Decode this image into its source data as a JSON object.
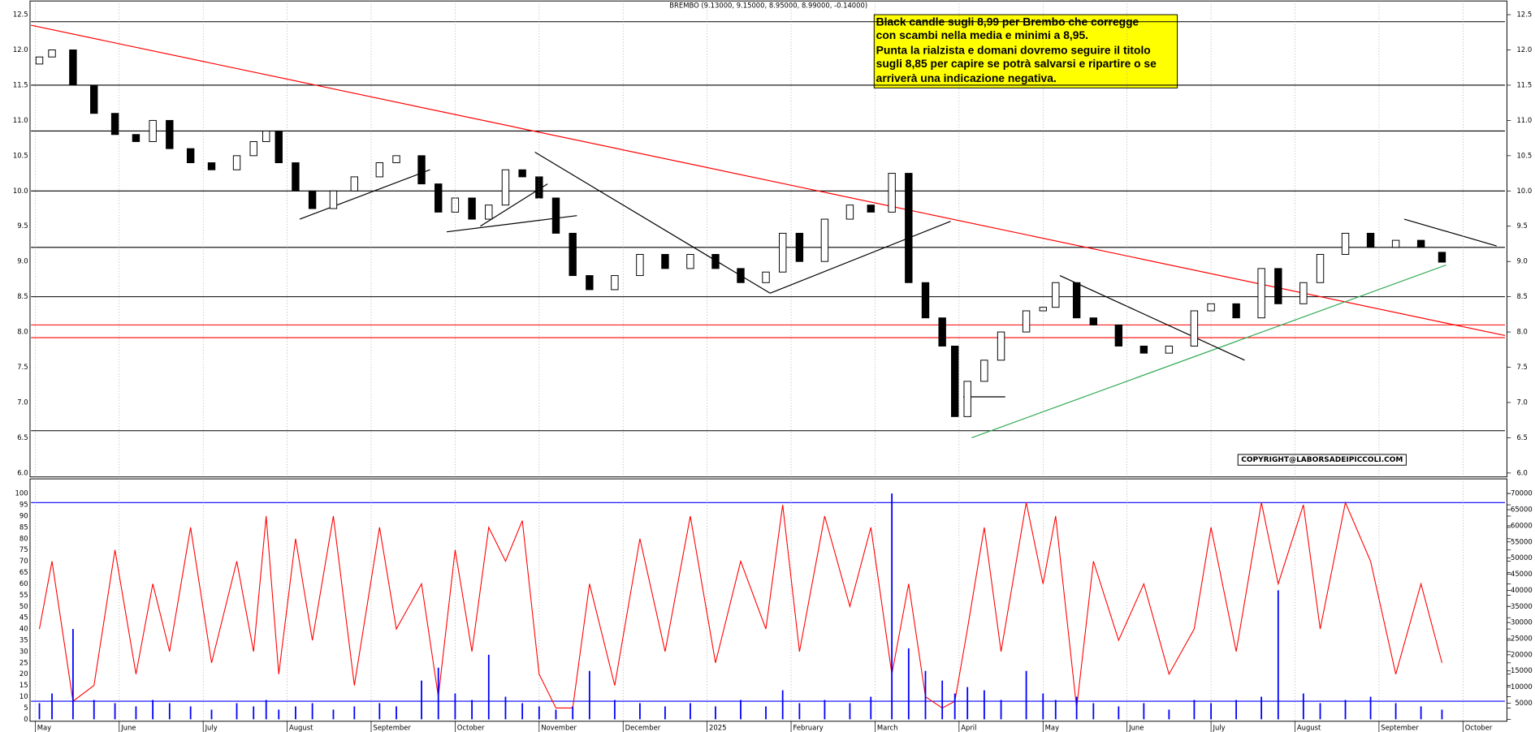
{
  "header": "BREMBO (9.13000, 9.15000, 8.95000, 8.99000, -0.14000)",
  "comment": [
    "Black candle sugli 8,99 per Brembo che corregge",
    "con scambi nella media e minimi a 8,95.",
    "Punta la rialzista e domani dovremo seguire il titolo",
    "sugli 8,85 per capire se potrà salvarsi e ripartire o se",
    "arriverà una indicazione negativa."
  ],
  "copyright": "COPYRIGHT@LABORSADEIPICCOLI.COM",
  "chart_data": [
    {
      "type": "candlestick",
      "x": [
        0.05,
        0.2,
        0.45,
        0.7,
        0.95,
        1.2,
        1.4,
        1.6,
        1.85,
        2.1,
        2.4,
        2.6,
        2.75,
        2.9,
        3.1,
        3.3,
        3.55,
        3.8,
        4.1,
        4.3,
        4.6,
        4.8,
        5.0,
        5.2,
        5.4,
        5.6,
        5.8,
        6.0,
        6.2,
        6.4,
        6.6,
        6.9,
        7.2,
        7.5,
        7.8,
        8.1,
        8.4,
        8.7,
        8.9,
        9.1,
        9.4,
        9.7,
        9.95,
        10.2,
        10.4,
        10.6,
        10.8,
        10.95,
        11.1,
        11.3,
        11.5,
        11.8,
        12.0,
        12.15,
        12.4,
        12.6,
        12.9,
        13.2,
        13.5,
        13.8,
        14.0,
        14.3,
        14.6,
        14.8,
        15.1,
        15.3,
        15.6,
        15.9,
        16.2,
        16.5,
        16.75
      ],
      "open": [
        11.8,
        11.9,
        12.0,
        11.5,
        11.1,
        10.8,
        10.7,
        11.0,
        10.6,
        10.4,
        10.3,
        10.5,
        10.7,
        10.85,
        10.4,
        10.0,
        9.75,
        10.0,
        10.2,
        10.4,
        10.5,
        10.1,
        9.7,
        9.9,
        9.6,
        9.8,
        10.3,
        10.2,
        9.9,
        9.4,
        8.8,
        8.6,
        8.8,
        9.1,
        8.9,
        9.1,
        8.9,
        8.7,
        8.85,
        9.4,
        9.0,
        9.6,
        9.8,
        9.7,
        10.25,
        8.7,
        8.2,
        7.8,
        6.8,
        7.3,
        7.6,
        8.0,
        8.3,
        8.35,
        8.7,
        8.2,
        8.1,
        7.8,
        7.7,
        7.8,
        8.3,
        8.4,
        8.2,
        8.9,
        8.4,
        8.7,
        9.1,
        9.4,
        9.2,
        9.3,
        9.13
      ],
      "close": [
        11.9,
        12.0,
        11.5,
        11.1,
        10.8,
        10.7,
        11.0,
        10.6,
        10.4,
        10.3,
        10.5,
        10.7,
        10.85,
        10.4,
        10.0,
        9.75,
        10.0,
        10.2,
        10.4,
        10.5,
        10.1,
        9.7,
        9.9,
        9.6,
        9.8,
        10.3,
        10.2,
        9.9,
        9.4,
        8.8,
        8.6,
        8.8,
        9.1,
        8.9,
        9.1,
        8.9,
        8.7,
        8.85,
        9.4,
        9.0,
        9.6,
        9.8,
        9.7,
        10.25,
        8.7,
        8.2,
        7.8,
        6.8,
        7.3,
        7.6,
        8.0,
        8.3,
        8.35,
        8.7,
        8.2,
        8.1,
        7.8,
        7.7,
        7.8,
        8.3,
        8.4,
        8.2,
        8.9,
        8.4,
        8.7,
        9.1,
        9.4,
        9.2,
        9.3,
        9.2,
        8.99
      ],
      "xlim": [
        -0.05,
        17.5
      ],
      "ylim": [
        6.0,
        12.5
      ],
      "yticks": [
        12.5,
        {
          "value": 12,
          "label": "12.0"
        },
        11.5,
        {
          "value": 11,
          "label": "11.0"
        },
        10.5,
        {
          "value": 10,
          "label": "10.0"
        },
        9.5,
        {
          "value": 9,
          "label": "9.0"
        },
        8.5,
        {
          "value": 8,
          "label": "8.0"
        },
        7.5,
        {
          "value": 7,
          "label": "7.0"
        },
        6.5,
        {
          "value": 6,
          "label": "6.0"
        }
      ],
      "levels": [
        {
          "value": 12.4,
          "color": "#000000"
        },
        {
          "value": 11.5,
          "color": "#000000"
        },
        {
          "value": 10.85,
          "color": "#000000"
        },
        {
          "value": 10.0,
          "color": "#000000"
        },
        {
          "value": 9.2,
          "color": "#000000"
        },
        {
          "value": 8.5,
          "color": "#000000"
        },
        {
          "value": 6.6,
          "color": "#000000"
        },
        {
          "value": 8.1,
          "color": "#ff0000"
        },
        {
          "value": 7.92,
          "color": "#ff0000"
        }
      ],
      "trendlines": [
        {
          "color": "#ff0000",
          "points": [
            [
              -0.05,
              12.35
            ],
            [
              17.5,
              7.95
            ]
          ]
        },
        {
          "color": "#33aa55",
          "points": [
            [
              11.15,
              6.5
            ],
            [
              16.8,
              8.95
            ]
          ]
        },
        {
          "color": "#000000",
          "points": [
            [
              3.15,
              9.6
            ],
            [
              4.7,
              10.3
            ]
          ]
        },
        {
          "color": "#000000",
          "points": [
            [
              4.9,
              9.42
            ],
            [
              6.45,
              9.65
            ]
          ]
        },
        {
          "color": "#000000",
          "points": [
            [
              5.3,
              9.5
            ],
            [
              6.1,
              10.1
            ]
          ]
        },
        {
          "color": "#000000",
          "points": [
            [
              5.95,
              10.55
            ],
            [
              8.75,
              8.55
            ]
          ]
        },
        {
          "color": "#000000",
          "points": [
            [
              8.75,
              8.55
            ],
            [
              10.9,
              9.57
            ]
          ]
        },
        {
          "color": "#000000",
          "points": [
            [
              12.2,
              8.8
            ],
            [
              14.4,
              7.6
            ]
          ]
        },
        {
          "color": "#000000",
          "points": [
            [
              16.3,
              9.6
            ],
            [
              17.4,
              9.22
            ]
          ]
        },
        {
          "color": "#000000",
          "points": [
            [
              11.05,
              7.08
            ],
            [
              11.55,
              7.08
            ]
          ]
        }
      ]
    },
    {
      "type": "line",
      "x": [
        0.05,
        0.2,
        0.45,
        0.7,
        0.95,
        1.2,
        1.4,
        1.6,
        1.85,
        2.1,
        2.4,
        2.6,
        2.75,
        2.9,
        3.1,
        3.3,
        3.55,
        3.8,
        4.1,
        4.3,
        4.6,
        4.8,
        5.0,
        5.2,
        5.4,
        5.6,
        5.8,
        6.0,
        6.2,
        6.4,
        6.6,
        6.9,
        7.2,
        7.5,
        7.8,
        8.1,
        8.4,
        8.7,
        8.9,
        9.1,
        9.4,
        9.7,
        9.95,
        10.2,
        10.4,
        10.6,
        10.8,
        10.95,
        11.1,
        11.3,
        11.5,
        11.8,
        12.0,
        12.15,
        12.4,
        12.6,
        12.9,
        13.2,
        13.5,
        13.8,
        14.0,
        14.3,
        14.6,
        14.8,
        15.1,
        15.3,
        15.6,
        15.9,
        16.2,
        16.5,
        16.75
      ],
      "series": [
        {
          "color": "#ff0000",
          "values": [
            40,
            70,
            8,
            15,
            75,
            20,
            60,
            30,
            85,
            25,
            70,
            30,
            90,
            20,
            80,
            35,
            90,
            15,
            85,
            40,
            60,
            10,
            75,
            30,
            85,
            70,
            88,
            20,
            5,
            5,
            60,
            15,
            80,
            30,
            90,
            25,
            70,
            40,
            95,
            30,
            90,
            50,
            85,
            20,
            60,
            10,
            5,
            8,
            40,
            85,
            30,
            96,
            60,
            90,
            5,
            70,
            35,
            60,
            20,
            40,
            85,
            30,
            96,
            60,
            95,
            40,
            96,
            70,
            20,
            60,
            25
          ]
        },
        {
          "color": "#0000ff",
          "axis": "y2",
          "values": [
            5000,
            8000,
            28000,
            6000,
            5000,
            4000,
            6000,
            5000,
            4000,
            3000,
            5000,
            4000,
            6000,
            3000,
            4000,
            5000,
            3000,
            4000,
            5000,
            4000,
            12000,
            16000,
            8000,
            6000,
            20000,
            7000,
            5000,
            4000,
            3000,
            4000,
            15000,
            6000,
            5000,
            4000,
            5000,
            4000,
            6000,
            4000,
            9000,
            5000,
            6000,
            5000,
            7000,
            70000,
            22000,
            15000,
            12000,
            8000,
            10000,
            9000,
            6000,
            15000,
            8000,
            6000,
            7000,
            5000,
            4000,
            5000,
            3000,
            6000,
            5000,
            6000,
            7000,
            40000,
            8000,
            5000,
            6000,
            7000,
            5000,
            4000,
            3000
          ]
        }
      ],
      "xlim": [
        -0.05,
        17.5
      ],
      "xticks": [
        {
          "value": 0,
          "label": "May"
        },
        {
          "value": 1,
          "label": "June"
        },
        {
          "value": 2,
          "label": "July"
        },
        {
          "value": 3,
          "label": "August"
        },
        {
          "value": 4,
          "label": "September"
        },
        {
          "value": 5,
          "label": "October"
        },
        {
          "value": 6,
          "label": "November"
        },
        {
          "value": 7,
          "label": "December"
        },
        {
          "value": 8,
          "label": "2025"
        },
        {
          "value": 9,
          "label": "February"
        },
        {
          "value": 10,
          "label": "March"
        },
        {
          "value": 11,
          "label": "April"
        },
        {
          "value": 12,
          "label": "May"
        },
        {
          "value": 13,
          "label": "June"
        },
        {
          "value": 14,
          "label": "July"
        },
        {
          "value": 15,
          "label": "August"
        },
        {
          "value": 16,
          "label": "September"
        },
        {
          "value": 17,
          "label": "October"
        }
      ],
      "ylim": [
        0,
        100
      ],
      "yticks": [
        0,
        5,
        10,
        15,
        20,
        25,
        30,
        35,
        40,
        45,
        50,
        55,
        60,
        65,
        70,
        75,
        80,
        85,
        90,
        95,
        100
      ],
      "y2lim": [
        0,
        70000
      ],
      "y2ticks": [
        5000,
        10000,
        15000,
        20000,
        25000,
        30000,
        35000,
        40000,
        45000,
        50000,
        55000,
        60000,
        65000,
        70000
      ],
      "levels": [
        {
          "value": 96,
          "color": "#0000ff"
        },
        {
          "value": 8,
          "color": "#0000ff"
        }
      ]
    }
  ]
}
